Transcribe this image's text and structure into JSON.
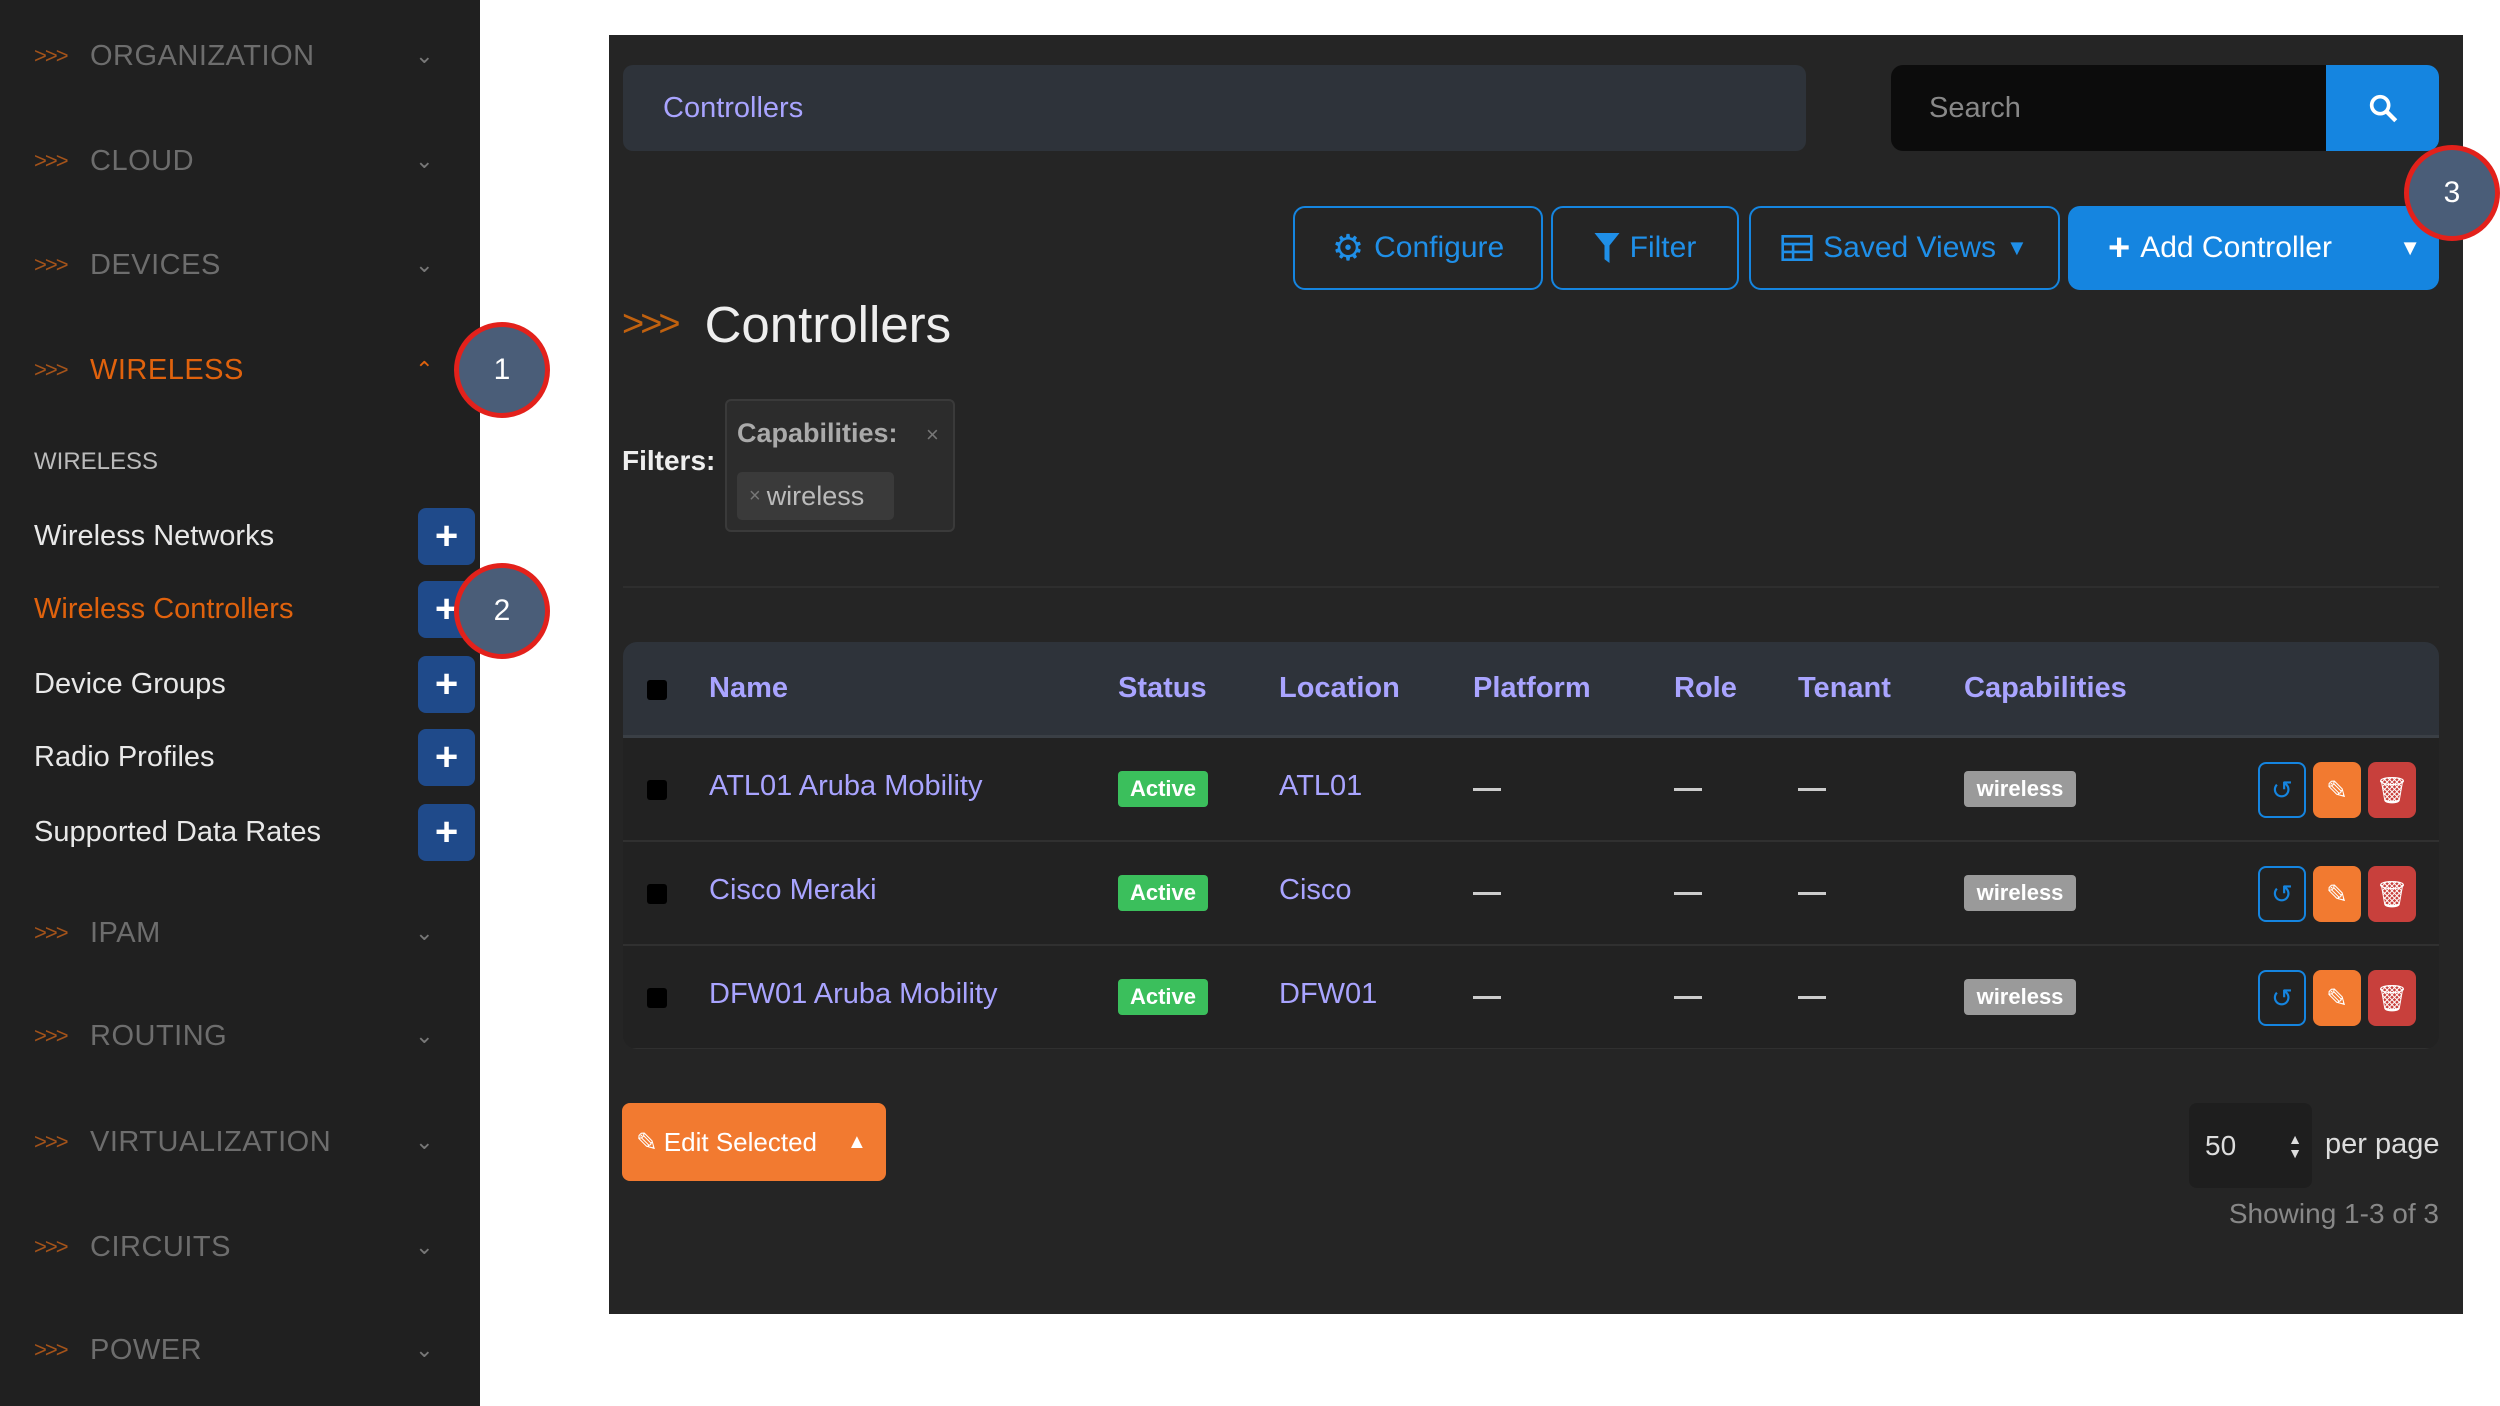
{
  "sidebar": {
    "sections": [
      "ORGANIZATION",
      "CLOUD",
      "DEVICES",
      "WIRELESS",
      "IPAM",
      "ROUTING",
      "VIRTUALIZATION",
      "CIRCUITS",
      "POWER"
    ],
    "arrow": ">>>",
    "subheading": "WIRELESS",
    "items": [
      {
        "label": "Wireless Networks"
      },
      {
        "label": "Wireless Controllers"
      },
      {
        "label": "Device Groups"
      },
      {
        "label": "Radio Profiles"
      },
      {
        "label": "Supported Data Rates"
      }
    ]
  },
  "markers": [
    "1",
    "2",
    "3"
  ],
  "breadcrumb": "Controllers",
  "search": {
    "placeholder": "Search"
  },
  "toolbar": {
    "configure": "Configure",
    "filter": "Filter",
    "saved_views": "Saved Views",
    "add": "Add Controller"
  },
  "page_title": "Controllers",
  "filters": {
    "label": "Filters:",
    "field": "Capabilities:",
    "value": "wireless",
    "remove": "×"
  },
  "table": {
    "headers": [
      "Name",
      "Status",
      "Location",
      "Platform",
      "Role",
      "Tenant",
      "Capabilities"
    ],
    "rows": [
      {
        "name": "ATL01 Aruba Mobility",
        "status": "Active",
        "location": "ATL01",
        "platform": "—",
        "role": "—",
        "tenant": "—",
        "capabilities": "wireless"
      },
      {
        "name": "Cisco Meraki",
        "status": "Active",
        "location": "Cisco",
        "platform": "—",
        "role": "—",
        "tenant": "—",
        "capabilities": "wireless"
      },
      {
        "name": "DFW01 Aruba Mobility",
        "status": "Active",
        "location": "DFW01",
        "platform": "—",
        "role": "—",
        "tenant": "—",
        "capabilities": "wireless"
      }
    ]
  },
  "footer": {
    "edit_selected": "Edit Selected",
    "per_page_value": "50",
    "per_page_label": "per page",
    "showing": "Showing 1-3 of 3"
  },
  "colors": {
    "accent": "#1585e0",
    "active_section": "#e0620d",
    "link": "#a9a4ff",
    "status_active": "#3bbf5c",
    "edit": "#f27a30",
    "delete": "#c8403c"
  }
}
